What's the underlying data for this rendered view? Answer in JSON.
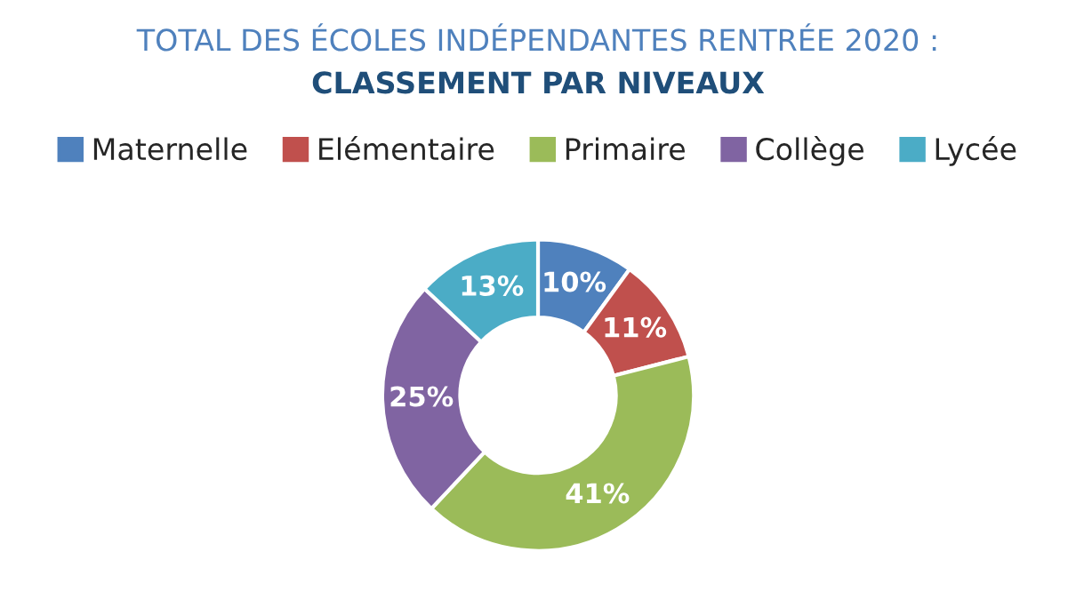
{
  "chart_data": {
    "type": "donut",
    "title": "TOTAL DES ÉCOLES INDÉPENDANTES RENTRÉE 2020 :",
    "subtitle": "CLASSEMENT PAR NIVEAUX",
    "categories": [
      "Maternelle",
      "Elémentaire",
      "Primaire",
      "Collège",
      "Lycée"
    ],
    "values": [
      10,
      11,
      41,
      25,
      13
    ],
    "colors": [
      "#4f81bd",
      "#c0504d",
      "#9bbb59",
      "#8064a2",
      "#4bacc6"
    ],
    "value_labels": [
      "10%",
      "11%",
      "41%",
      "25%",
      "13%"
    ],
    "legend": "top"
  }
}
